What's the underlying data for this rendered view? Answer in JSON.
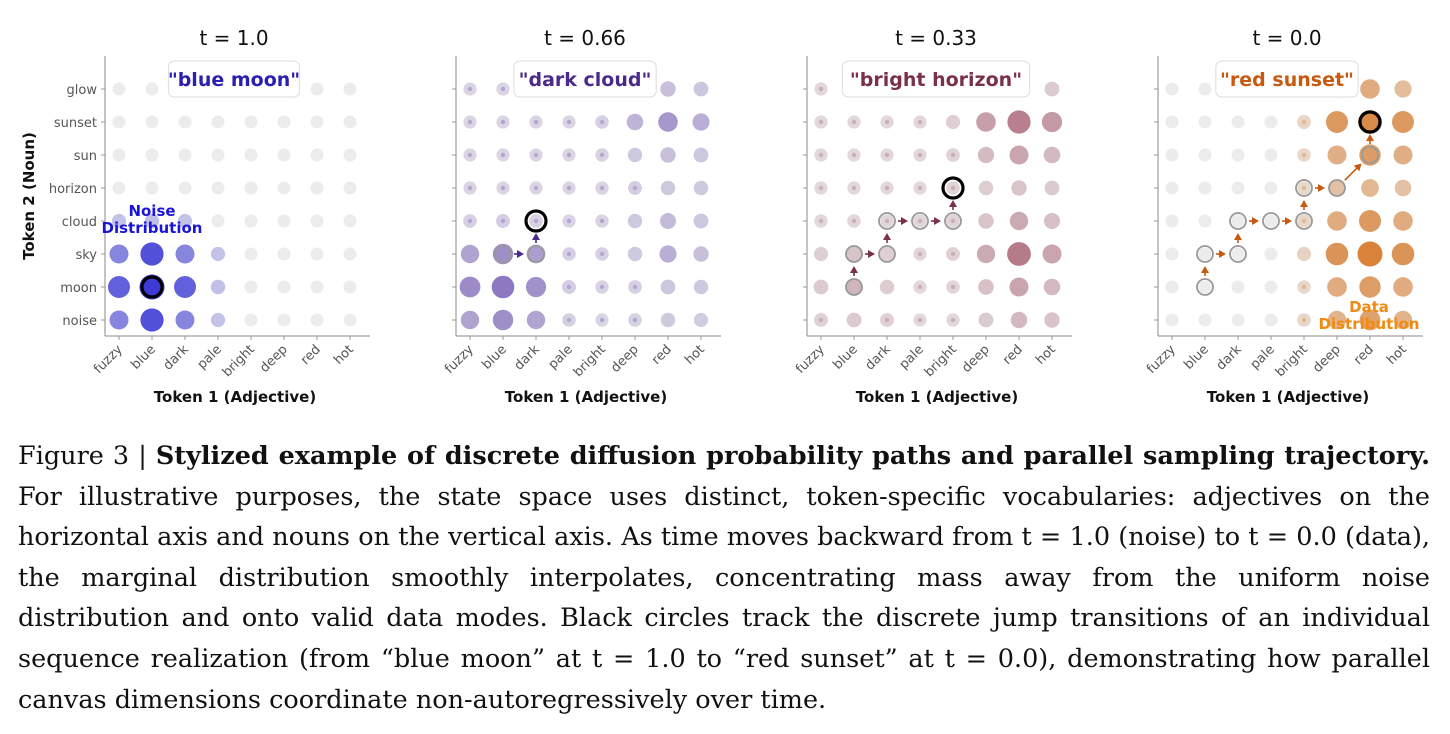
{
  "chart_data": [
    {
      "type": "scatter",
      "title": "t = 1.0",
      "badge": "\"blue moon\"",
      "badge_color": "#2a1fb0",
      "color": "#3d3ad6",
      "xlabel": "Token 1 (Adjective)",
      "ylabel": "Token 2 (Noun)",
      "x_categories": [
        "fuzzy",
        "blue",
        "dark",
        "pale",
        "bright",
        "deep",
        "red",
        "hot"
      ],
      "y_categories": [
        "noise",
        "moon",
        "sky",
        "cloud",
        "horizon",
        "sun",
        "sunset",
        "glow"
      ],
      "mass": [
        [
          0.5,
          0.85,
          0.5,
          0.1,
          0,
          0,
          0,
          0
        ],
        [
          0.75,
          1.0,
          0.75,
          0.12,
          0,
          0,
          0,
          0
        ],
        [
          0.5,
          0.85,
          0.5,
          0.1,
          0,
          0,
          0,
          0
        ],
        [
          0.1,
          0.12,
          0.1,
          0,
          0,
          0,
          0,
          0
        ],
        [
          0,
          0,
          0,
          0,
          0,
          0,
          0,
          0
        ],
        [
          0,
          0,
          0,
          0,
          0,
          0,
          0,
          0
        ],
        [
          0,
          0,
          0,
          0,
          0,
          0,
          0,
          0
        ],
        [
          0,
          0,
          0,
          0,
          0,
          0,
          0,
          0
        ]
      ],
      "trajectory": [
        [
          "blue",
          "moon"
        ]
      ],
      "annotation": {
        "text": [
          "Noise",
          "Distribution"
        ],
        "color": "#1a14d8"
      }
    },
    {
      "type": "scatter",
      "title": "t = 0.66",
      "badge": "\"dark cloud\"",
      "badge_color": "#4a2a8a",
      "color": "#7a62b8",
      "xlabel": "Token 1 (Adjective)",
      "ylabel": "",
      "x_categories": [
        "fuzzy",
        "blue",
        "dark",
        "pale",
        "bright",
        "deep",
        "red",
        "hot"
      ],
      "y_categories": [
        "noise",
        "moon",
        "sky",
        "cloud",
        "horizon",
        "sun",
        "sunset",
        "glow"
      ],
      "mass": [
        [
          0.45,
          0.62,
          0.45,
          0.05,
          0.02,
          0.05,
          0.12,
          0.1
        ],
        [
          0.65,
          0.8,
          0.6,
          0.08,
          0.04,
          0.06,
          0.15,
          0.12
        ],
        [
          0.45,
          0.62,
          0.48,
          0.05,
          0.05,
          0.12,
          0.35,
          0.2
        ],
        [
          0.06,
          0.08,
          0.06,
          0.03,
          0.03,
          0.12,
          0.25,
          0.15
        ],
        [
          0.02,
          0.02,
          0.02,
          0.02,
          0.03,
          0.08,
          0.12,
          0.12
        ],
        [
          0.02,
          0.02,
          0.02,
          0.02,
          0.04,
          0.12,
          0.2,
          0.15
        ],
        [
          0.02,
          0.02,
          0.02,
          0.02,
          0.05,
          0.3,
          0.55,
          0.35
        ],
        [
          0.02,
          0.02,
          0.02,
          0.02,
          0.02,
          0.1,
          0.2,
          0.15
        ]
      ],
      "trajectory": [
        [
          "blue",
          "sky"
        ],
        [
          "dark",
          "sky"
        ],
        [
          "dark",
          "cloud"
        ]
      ],
      "annotation": null
    },
    {
      "type": "scatter",
      "title": "t = 0.33",
      "badge": "\"bright horizon\"",
      "badge_color": "#7a3048",
      "color": "#b07080",
      "xlabel": "Token 1 (Adjective)",
      "ylabel": "",
      "x_categories": [
        "fuzzy",
        "blue",
        "dark",
        "pale",
        "bright",
        "deep",
        "red",
        "hot"
      ],
      "y_categories": [
        "noise",
        "moon",
        "sky",
        "cloud",
        "horizon",
        "sun",
        "sunset",
        "glow"
      ],
      "mass": [
        [
          0.08,
          0.15,
          0.08,
          0.02,
          0.03,
          0.15,
          0.3,
          0.2
        ],
        [
          0.15,
          0.35,
          0.12,
          0.02,
          0.05,
          0.22,
          0.5,
          0.3
        ],
        [
          0.1,
          0.2,
          0.1,
          0.03,
          0.08,
          0.45,
          0.9,
          0.5
        ],
        [
          0.03,
          0.04,
          0.03,
          0.03,
          0.05,
          0.2,
          0.45,
          0.25
        ],
        [
          0.02,
          0.02,
          0.02,
          0.02,
          0.05,
          0.12,
          0.2,
          0.15
        ],
        [
          0.02,
          0.02,
          0.02,
          0.02,
          0.06,
          0.28,
          0.5,
          0.3
        ],
        [
          0.02,
          0.02,
          0.02,
          0.02,
          0.1,
          0.55,
          0.85,
          0.6
        ],
        [
          0.02,
          0.02,
          0.02,
          0.02,
          0.02,
          0.1,
          0.2,
          0.15
        ]
      ],
      "trajectory": [
        [
          "blue",
          "moon"
        ],
        [
          "blue",
          "sky"
        ],
        [
          "dark",
          "sky"
        ],
        [
          "dark",
          "cloud"
        ],
        [
          "pale",
          "cloud"
        ],
        [
          "bright",
          "cloud"
        ],
        [
          "bright",
          "horizon"
        ]
      ],
      "annotation": null
    },
    {
      "type": "scatter",
      "title": "t = 0.0",
      "badge": "\"red sunset\"",
      "badge_color": "#c85a10",
      "color": "#d8823a",
      "xlabel": "Token 1 (Adjective)",
      "ylabel": "",
      "x_categories": [
        "fuzzy",
        "blue",
        "dark",
        "pale",
        "bright",
        "deep",
        "red",
        "hot"
      ],
      "y_categories": [
        "noise",
        "moon",
        "sky",
        "cloud",
        "horizon",
        "sun",
        "sunset",
        "glow"
      ],
      "mass": [
        [
          0,
          0,
          0,
          0,
          0.05,
          0.45,
          0.65,
          0.45
        ],
        [
          0,
          0,
          0,
          0,
          0.05,
          0.55,
          0.7,
          0.55
        ],
        [
          0,
          0,
          0,
          0,
          0.1,
          0.8,
          1.0,
          0.8
        ],
        [
          0,
          0,
          0,
          0,
          0.05,
          0.55,
          0.75,
          0.55
        ],
        [
          0,
          0,
          0,
          0,
          0.03,
          0.3,
          0.4,
          0.3
        ],
        [
          0,
          0,
          0,
          0,
          0.05,
          0.5,
          0.7,
          0.5
        ],
        [
          0,
          0,
          0,
          0,
          0.08,
          0.75,
          0.9,
          0.75
        ],
        [
          0,
          0,
          0,
          0,
          0.03,
          0.35,
          0.55,
          0.35
        ]
      ],
      "trajectory": [
        [
          "blue",
          "moon"
        ],
        [
          "blue",
          "sky"
        ],
        [
          "dark",
          "sky"
        ],
        [
          "dark",
          "cloud"
        ],
        [
          "pale",
          "cloud"
        ],
        [
          "bright",
          "cloud"
        ],
        [
          "bright",
          "horizon"
        ],
        [
          "deep",
          "horizon"
        ],
        [
          "red",
          "sun"
        ],
        [
          "red",
          "sunset"
        ]
      ],
      "annotation": {
        "text": [
          "Data",
          "Distribution"
        ],
        "color": "#f08a10"
      }
    }
  ],
  "caption": {
    "label": "Figure 3 | ",
    "title_bold": "Stylized example of discrete diffusion probability paths and parallel sampling trajectory.",
    "body": " For illustrative purposes, the state space uses distinct, token-specific vocabularies: adjectives on the horizontal axis and nouns on the vertical axis. As time moves backward from t = 1.0 (noise) to t = 0.0 (data), the marginal distribution smoothly interpolates, concentrating mass away from the uniform noise distribution and onto valid data modes.  Black circles track the discrete jump transitions of an individual sequence realization (from “blue moon” at t = 1.0 to “red sunset” at t = 0.0), demonstrating how parallel canvas dimensions coordinate non-autoregressively over time."
  }
}
